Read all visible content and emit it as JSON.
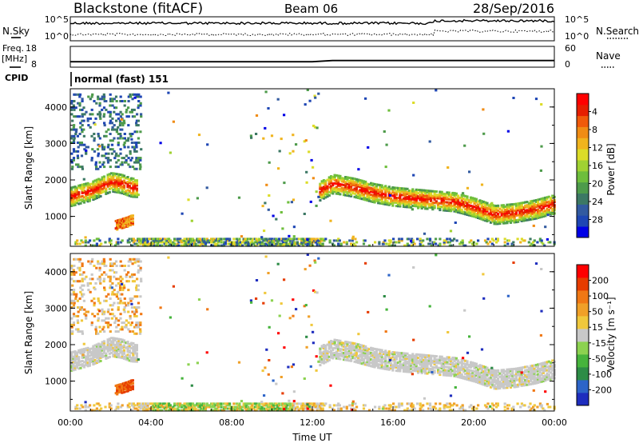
{
  "header": {
    "station": "Blackstone (fitACF)",
    "beam": "Beam 06",
    "date": "28/Sep/2016"
  },
  "chart_data": [
    {
      "id": "noise",
      "type": "line",
      "left_label": "N.Sky",
      "right_label": "N.Search",
      "left_ticks": [
        "10^5",
        "10^0"
      ],
      "right_ticks": [
        "10^5",
        "10^0"
      ],
      "series": [
        {
          "name": "N.Sky",
          "style": "solid"
        },
        {
          "name": "N.Search",
          "style": "dotted"
        }
      ]
    },
    {
      "id": "freq",
      "type": "line",
      "left_label_top": "Freq.",
      "left_label_bottom": "[MHz]",
      "right_label": "Nave",
      "ylim": [
        8,
        18
      ],
      "left_ticks": [
        "18",
        "8"
      ],
      "right_ticks": [
        "60",
        "0"
      ],
      "x": [
        0,
        1,
        2,
        3,
        4,
        5,
        6,
        7,
        8,
        9,
        10,
        11,
        12,
        13,
        14,
        15,
        16,
        17,
        18,
        19,
        20,
        21,
        22,
        23,
        24
      ],
      "series": [
        {
          "name": "Freq.",
          "values": [
            10.6,
            10.6,
            10.6,
            10.6,
            10.6,
            10.6,
            10.6,
            10.6,
            10.6,
            10.6,
            10.6,
            10.6,
            10.6,
            11.2,
            11.2,
            11.2,
            11.2,
            11.2,
            11.2,
            11.2,
            11.2,
            11.2,
            11.2,
            11.2,
            11.2
          ]
        }
      ]
    },
    {
      "id": "cpid",
      "type": "table",
      "label": "CPID",
      "value": "normal (fast) 151"
    },
    {
      "id": "power",
      "type": "heatmap",
      "ylabel": "Slant Range [km]",
      "ylim": [
        180,
        4500
      ],
      "y_ticks": [
        "1000",
        "2000",
        "3000",
        "4000"
      ],
      "xlim": [
        0,
        24
      ],
      "colorbar": {
        "label": "Power [dB]",
        "ticks": [
          "4",
          "8",
          "12",
          "16",
          "20",
          "24",
          "28"
        ],
        "range": [
          0,
          30
        ],
        "colors": [
          "#0000e6",
          "#1e46b4",
          "#325aa0",
          "#3c7864",
          "#4e9b4b",
          "#6ebe3c",
          "#a0d232",
          "#dcdc28",
          "#f0b41e",
          "#f08c14",
          "#f05a0a",
          "#e61e00",
          "#ff0000"
        ]
      },
      "bands": [
        {
          "name": "main-echo",
          "x": [
            0,
            1,
            2,
            2.5,
            3,
            12,
            13,
            14,
            15,
            16,
            17,
            18,
            19,
            20,
            21,
            22,
            23,
            24
          ],
          "y": [
            1550,
            1700,
            1950,
            1900,
            1800,
            1600,
            1900,
            1800,
            1650,
            1550,
            1500,
            1450,
            1400,
            1250,
            1050,
            1100,
            1200,
            1350
          ]
        },
        {
          "name": "early-patch",
          "x": [
            2.2,
            2.5,
            2.8,
            3.0
          ],
          "y": [
            750,
            800,
            850,
            900
          ]
        }
      ]
    },
    {
      "id": "velocity",
      "type": "heatmap",
      "ylabel": "Slant Range [km]",
      "xlabel": "Time UT",
      "ylim": [
        180,
        4500
      ],
      "y_ticks": [
        "1000",
        "2000",
        "3000",
        "4000"
      ],
      "x_ticks": [
        "00:00",
        "04:00",
        "08:00",
        "12:00",
        "16:00",
        "20:00",
        "00:00"
      ],
      "xlim": [
        0,
        24
      ],
      "colorbar": {
        "label": "Velocity [m s⁻¹]",
        "ticks": [
          "200",
          "100",
          "50",
          "15",
          "-15",
          "-50",
          "-100",
          "-200"
        ],
        "colors": [
          "#1e2dbe",
          "#2d64c8",
          "#2d8c46",
          "#46b43c",
          "#8cd250",
          "#c8c8c8",
          "#f0c83c",
          "#f0a028",
          "#f07814",
          "#e63c00",
          "#ff0000"
        ]
      }
    }
  ]
}
